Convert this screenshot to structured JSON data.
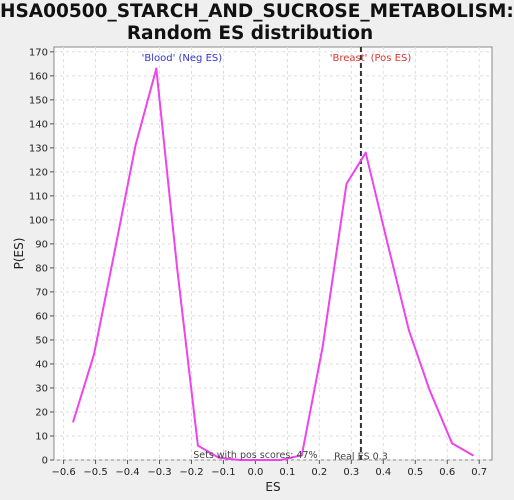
{
  "chart_data": {
    "type": "line",
    "title": [
      "HSA00500_STARCH_AND_SUCROSE_METABOLISM:",
      "Random ES distribution"
    ],
    "xlabel": "ES",
    "ylabel": "P(ES)",
    "xlim": [
      -0.63,
      0.74
    ],
    "ylim": [
      0,
      172
    ],
    "xticks": [
      -0.6,
      -0.5,
      -0.4,
      -0.3,
      -0.2,
      -0.1,
      0.0,
      0.1,
      0.2,
      0.3,
      0.4,
      0.5,
      0.6,
      0.7
    ],
    "xtick_labels": [
      "−0.6",
      "−0.5",
      "−0.4",
      "−0.3",
      "−0.2",
      "−0.1",
      "0.0",
      "0.1",
      "0.2",
      "0.3",
      "0.4",
      "0.5",
      "0.6",
      "0.7"
    ],
    "yticks": [
      0,
      10,
      20,
      30,
      40,
      50,
      60,
      70,
      80,
      90,
      100,
      110,
      120,
      130,
      140,
      150,
      160,
      170
    ],
    "grid": true,
    "series": [
      {
        "color": "#ee44ee",
        "x": [
          -0.57,
          -0.505,
          -0.44,
          -0.375,
          -0.31,
          -0.245,
          -0.18,
          -0.115,
          -0.05,
          0.015,
          0.08,
          0.145,
          0.21,
          0.285,
          0.345,
          0.41,
          0.48,
          0.545,
          0.615,
          0.68
        ],
        "y": [
          16,
          44,
          87,
          131,
          163,
          80,
          6,
          1,
          0,
          0,
          0,
          2,
          47,
          115,
          128,
          92,
          54,
          29,
          7,
          2
        ]
      }
    ],
    "real_es_line": {
      "x": 0.33,
      "color": "#333333"
    },
    "annotations": {
      "neg_label": "'Blood' (Neg ES)",
      "pos_label": "'Breast' (Pos ES)",
      "neg_color": "#3333cc",
      "pos_color": "#dd3333",
      "sets_text": "Sets with pos scores: 47%",
      "real_es_text": "Real ES 0.3"
    }
  }
}
